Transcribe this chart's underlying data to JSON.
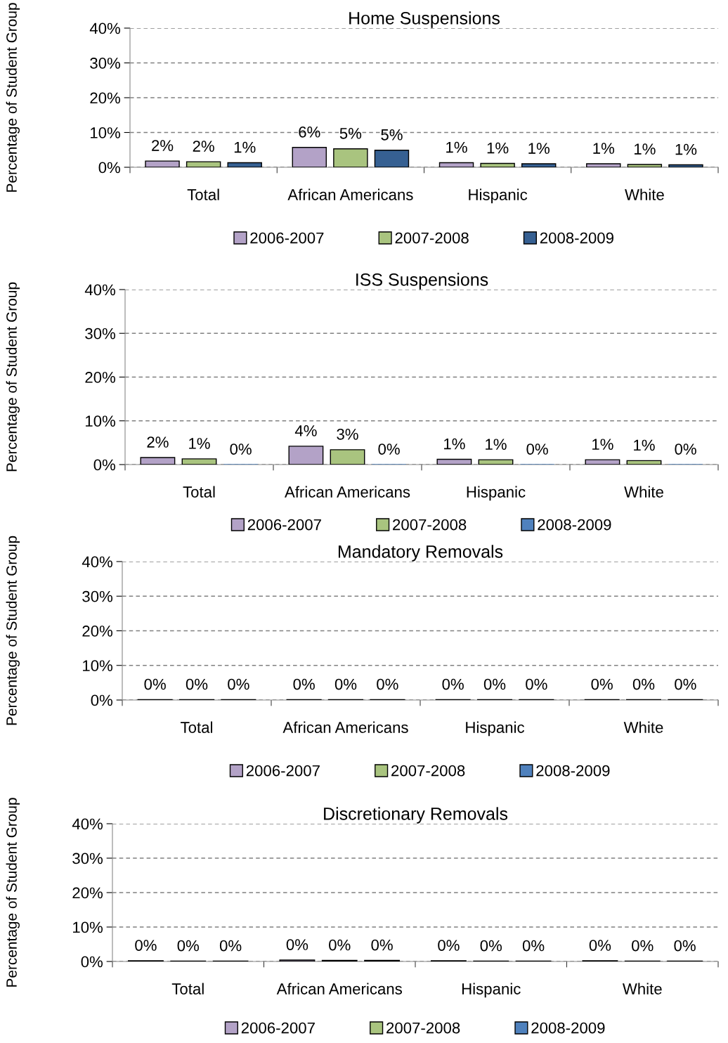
{
  "chart_data": [
    {
      "type": "bar",
      "title": "Home Suspensions",
      "ylabel": "Percentage of Student Group",
      "categories": [
        "Total",
        "African Americans",
        "Hispanic",
        "White"
      ],
      "ylim": [
        0,
        40
      ],
      "yticks": [
        {
          "value": 0,
          "label": "0%"
        },
        {
          "value": 10,
          "label": "10%"
        },
        {
          "value": 20,
          "label": "20%"
        },
        {
          "value": 30,
          "label": "30%"
        },
        {
          "value": 40,
          "label": "40%"
        }
      ],
      "grid": "y",
      "legend": "bottom",
      "series": [
        {
          "name": "2006-2007",
          "color": "#b3a2c7",
          "values": [
            1.8,
            5.7,
            1.3,
            1.0
          ],
          "value_labels": [
            "2%",
            "6%",
            "1%",
            "1%"
          ]
        },
        {
          "name": "2007-2008",
          "color": "#a9c47f",
          "values": [
            1.6,
            5.3,
            1.1,
            0.8
          ],
          "value_labels": [
            "2%",
            "5%",
            "1%",
            "1%"
          ]
        },
        {
          "name": "2008-2009",
          "color": "#366092",
          "values": [
            1.3,
            4.9,
            1.0,
            0.7
          ],
          "value_labels": [
            "1%",
            "5%",
            "1%",
            "1%"
          ]
        }
      ]
    },
    {
      "type": "bar",
      "title": "ISS Suspensions",
      "ylabel": "Percentage of Student Group",
      "categories": [
        "Total",
        "African Americans",
        "Hispanic",
        "White"
      ],
      "ylim": [
        0,
        40
      ],
      "yticks": [
        {
          "value": 0,
          "label": "0%"
        },
        {
          "value": 10,
          "label": "10%"
        },
        {
          "value": 20,
          "label": "20%"
        },
        {
          "value": 30,
          "label": "30%"
        },
        {
          "value": 40,
          "label": "40%"
        }
      ],
      "grid": "y",
      "legend": "bottom",
      "series": [
        {
          "name": "2006-2007",
          "color": "#b3a2c7",
          "values": [
            1.6,
            4.2,
            1.2,
            1.1
          ],
          "value_labels": [
            "2%",
            "4%",
            "1%",
            "1%"
          ]
        },
        {
          "name": "2007-2008",
          "color": "#a9c47f",
          "values": [
            1.3,
            3.4,
            1.1,
            0.9
          ],
          "value_labels": [
            "1%",
            "3%",
            "1%",
            "1%"
          ]
        },
        {
          "name": "2008-2009",
          "color": "#4f81bd",
          "values": [
            0,
            0,
            0,
            0
          ],
          "value_labels": [
            "0%",
            "0%",
            "0%",
            "0%"
          ]
        }
      ]
    },
    {
      "type": "bar",
      "title": "Mandatory Removals",
      "ylabel": "Percentage of Student Group",
      "categories": [
        "Total",
        "African Americans",
        "Hispanic",
        "White"
      ],
      "ylim": [
        0,
        40
      ],
      "yticks": [
        {
          "value": 0,
          "label": "0%"
        },
        {
          "value": 10,
          "label": "10%"
        },
        {
          "value": 20,
          "label": "20%"
        },
        {
          "value": 30,
          "label": "30%"
        },
        {
          "value": 40,
          "label": "40%"
        }
      ],
      "grid": "y",
      "legend": "bottom",
      "series": [
        {
          "name": "2006-2007",
          "color": "#b3a2c7",
          "values": [
            0.1,
            0.1,
            0.1,
            0.1
          ],
          "value_labels": [
            "0%",
            "0%",
            "0%",
            "0%"
          ]
        },
        {
          "name": "2007-2008",
          "color": "#a9c47f",
          "values": [
            0.1,
            0.1,
            0.1,
            0.1
          ],
          "value_labels": [
            "0%",
            "0%",
            "0%",
            "0%"
          ]
        },
        {
          "name": "2008-2009",
          "color": "#4f81bd",
          "values": [
            0.1,
            0.1,
            0.1,
            0.1
          ],
          "value_labels": [
            "0%",
            "0%",
            "0%",
            "0%"
          ]
        }
      ]
    },
    {
      "type": "bar",
      "title": "Discretionary Removals",
      "ylabel": "Percentage of Student Group",
      "categories": [
        "Total",
        "African Americans",
        "Hispanic",
        "White"
      ],
      "ylim": [
        0,
        40
      ],
      "yticks": [
        {
          "value": 0,
          "label": "0%"
        },
        {
          "value": 10,
          "label": "10%"
        },
        {
          "value": 20,
          "label": "20%"
        },
        {
          "value": 30,
          "label": "30%"
        },
        {
          "value": 40,
          "label": "40%"
        }
      ],
      "grid": "y",
      "legend": "bottom",
      "series": [
        {
          "name": "2006-2007",
          "color": "#b3a2c7",
          "values": [
            0.2,
            0.4,
            0.2,
            0.2
          ],
          "value_labels": [
            "0%",
            "0%",
            "0%",
            "0%"
          ]
        },
        {
          "name": "2007-2008",
          "color": "#a9c47f",
          "values": [
            0.1,
            0.3,
            0.1,
            0.1
          ],
          "value_labels": [
            "0%",
            "0%",
            "0%",
            "0%"
          ]
        },
        {
          "name": "2008-2009",
          "color": "#4f81bd",
          "values": [
            0.1,
            0.3,
            0.1,
            0.1
          ],
          "value_labels": [
            "0%",
            "0%",
            "0%",
            "0%"
          ]
        }
      ]
    }
  ]
}
